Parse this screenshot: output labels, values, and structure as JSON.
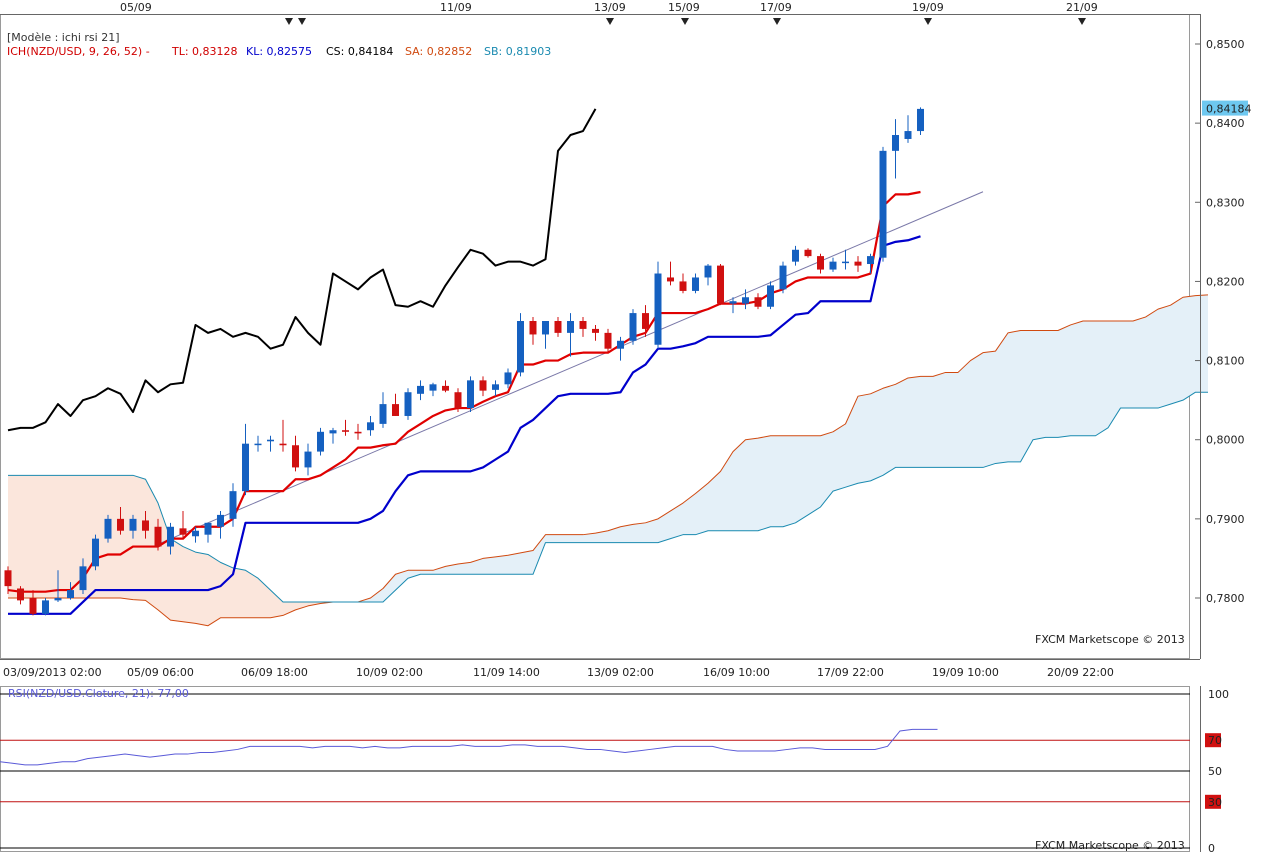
{
  "colors": {
    "tenkan": "#e00000",
    "kijun": "#0000cc",
    "chikou": "#000000",
    "senkou_a": "#d04a10",
    "senkou_b": "#1a8ab0",
    "cloud_bull": "#e4f0f8",
    "cloud_bear": "#fbe6dc",
    "up_candle": "#1560c0",
    "down_candle": "#d01010",
    "rsi": "#5a5ad8",
    "price_tag": "#6ec8f0"
  },
  "header": {
    "model": "[Modèle : ichi rsi 21]",
    "ich_name": "ICH(NZD/USD, 9, 26, 52) -",
    "tl": "TL: 0,83128",
    "kl": "KL: 0,82575",
    "cs": "CS: 0,84184",
    "sa": "SA: 0,82852",
    "sb": "SB: 0,81903"
  },
  "top_dates": [
    "05/09",
    "11/09",
    "13/09",
    "15/09",
    "17/09",
    "19/09",
    "21/09"
  ],
  "top_markers": [
    1
  ],
  "bottom_labels": [
    "03/09/2013 02:00",
    "05/09 06:00",
    "06/09 18:00",
    "10/09 02:00",
    "11/09 14:00",
    "13/09 02:00",
    "16/09 10:00",
    "17/09 22:00",
    "19/09 10:00",
    "20/09 22:00"
  ],
  "price_axis": [
    "0,8500",
    "0,8400",
    "0,8300",
    "0,8200",
    "0,8100",
    "0,8000",
    "0,7900",
    "0,7800"
  ],
  "last_price": "0,84184",
  "watermark": "FXCM Marketscope © 2013",
  "rsi": {
    "title": "RSI(NZD/USD.Cloture, 21): 77,00",
    "levels": [
      "100",
      "70",
      "50",
      "30",
      "0"
    ],
    "watermark": "FXCM Marketscope © 2013"
  },
  "chart_data": {
    "type": "candlestick",
    "pair": "NZD/USD",
    "ylim": [
      0.7745,
      0.8505
    ],
    "candles": [
      {
        "o": 0.7835,
        "h": 0.784,
        "l": 0.7805,
        "c": 0.7815
      },
      {
        "o": 0.7812,
        "h": 0.7815,
        "l": 0.7792,
        "c": 0.7797
      },
      {
        "o": 0.78,
        "h": 0.781,
        "l": 0.7778,
        "c": 0.778
      },
      {
        "o": 0.778,
        "h": 0.78,
        "l": 0.7778,
        "c": 0.7797
      },
      {
        "o": 0.7797,
        "h": 0.7835,
        "l": 0.7795,
        "c": 0.78
      },
      {
        "o": 0.78,
        "h": 0.782,
        "l": 0.7798,
        "c": 0.781
      },
      {
        "o": 0.781,
        "h": 0.785,
        "l": 0.7805,
        "c": 0.784
      },
      {
        "o": 0.784,
        "h": 0.788,
        "l": 0.7835,
        "c": 0.7875
      },
      {
        "o": 0.7875,
        "h": 0.7905,
        "l": 0.787,
        "c": 0.79
      },
      {
        "o": 0.79,
        "h": 0.7915,
        "l": 0.788,
        "c": 0.7885
      },
      {
        "o": 0.7885,
        "h": 0.7905,
        "l": 0.7875,
        "c": 0.79
      },
      {
        "o": 0.7898,
        "h": 0.791,
        "l": 0.7875,
        "c": 0.7885
      },
      {
        "o": 0.789,
        "h": 0.79,
        "l": 0.786,
        "c": 0.7865
      },
      {
        "o": 0.7865,
        "h": 0.7895,
        "l": 0.7855,
        "c": 0.789
      },
      {
        "o": 0.7888,
        "h": 0.791,
        "l": 0.7875,
        "c": 0.788
      },
      {
        "o": 0.7878,
        "h": 0.789,
        "l": 0.787,
        "c": 0.7885
      },
      {
        "o": 0.788,
        "h": 0.7895,
        "l": 0.787,
        "c": 0.7895
      },
      {
        "o": 0.789,
        "h": 0.791,
        "l": 0.7875,
        "c": 0.7905
      },
      {
        "o": 0.79,
        "h": 0.7945,
        "l": 0.789,
        "c": 0.7935
      },
      {
        "o": 0.7935,
        "h": 0.802,
        "l": 0.793,
        "c": 0.7995
      },
      {
        "o": 0.7995,
        "h": 0.8005,
        "l": 0.7985,
        "c": 0.7995
      },
      {
        "o": 0.7998,
        "h": 0.8005,
        "l": 0.7985,
        "c": 0.8
      },
      {
        "o": 0.7995,
        "h": 0.8025,
        "l": 0.7985,
        "c": 0.7993
      },
      {
        "o": 0.7993,
        "h": 0.8005,
        "l": 0.796,
        "c": 0.7965
      },
      {
        "o": 0.7965,
        "h": 0.7995,
        "l": 0.7955,
        "c": 0.7985
      },
      {
        "o": 0.7985,
        "h": 0.8015,
        "l": 0.798,
        "c": 0.801
      },
      {
        "o": 0.8008,
        "h": 0.8015,
        "l": 0.7995,
        "c": 0.8012
      },
      {
        "o": 0.8012,
        "h": 0.8025,
        "l": 0.8005,
        "c": 0.801
      },
      {
        "o": 0.801,
        "h": 0.802,
        "l": 0.8,
        "c": 0.8008
      },
      {
        "o": 0.8012,
        "h": 0.803,
        "l": 0.8005,
        "c": 0.8022
      },
      {
        "o": 0.802,
        "h": 0.806,
        "l": 0.8015,
        "c": 0.8045
      },
      {
        "o": 0.8045,
        "h": 0.8058,
        "l": 0.803,
        "c": 0.803
      },
      {
        "o": 0.803,
        "h": 0.8065,
        "l": 0.8025,
        "c": 0.806
      },
      {
        "o": 0.8058,
        "h": 0.8075,
        "l": 0.805,
        "c": 0.8068
      },
      {
        "o": 0.8062,
        "h": 0.8072,
        "l": 0.8055,
        "c": 0.807
      },
      {
        "o": 0.8068,
        "h": 0.8075,
        "l": 0.806,
        "c": 0.8062
      },
      {
        "o": 0.806,
        "h": 0.8065,
        "l": 0.8035,
        "c": 0.804
      },
      {
        "o": 0.804,
        "h": 0.808,
        "l": 0.8035,
        "c": 0.8075
      },
      {
        "o": 0.8075,
        "h": 0.808,
        "l": 0.8055,
        "c": 0.8062
      },
      {
        "o": 0.8063,
        "h": 0.8075,
        "l": 0.8055,
        "c": 0.807
      },
      {
        "o": 0.807,
        "h": 0.809,
        "l": 0.8065,
        "c": 0.8085
      },
      {
        "o": 0.8085,
        "h": 0.816,
        "l": 0.808,
        "c": 0.815
      },
      {
        "o": 0.815,
        "h": 0.8155,
        "l": 0.812,
        "c": 0.8133
      },
      {
        "o": 0.8133,
        "h": 0.815,
        "l": 0.8115,
        "c": 0.815
      },
      {
        "o": 0.815,
        "h": 0.8155,
        "l": 0.813,
        "c": 0.8135
      },
      {
        "o": 0.8135,
        "h": 0.816,
        "l": 0.8105,
        "c": 0.815
      },
      {
        "o": 0.815,
        "h": 0.8155,
        "l": 0.813,
        "c": 0.814
      },
      {
        "o": 0.814,
        "h": 0.8145,
        "l": 0.8125,
        "c": 0.8135
      },
      {
        "o": 0.8135,
        "h": 0.814,
        "l": 0.811,
        "c": 0.8115
      },
      {
        "o": 0.8115,
        "h": 0.813,
        "l": 0.81,
        "c": 0.8125
      },
      {
        "o": 0.8125,
        "h": 0.8165,
        "l": 0.812,
        "c": 0.816
      },
      {
        "o": 0.816,
        "h": 0.817,
        "l": 0.813,
        "c": 0.814
      },
      {
        "o": 0.812,
        "h": 0.8225,
        "l": 0.8115,
        "c": 0.821
      },
      {
        "o": 0.8205,
        "h": 0.8225,
        "l": 0.8195,
        "c": 0.82
      },
      {
        "o": 0.82,
        "h": 0.821,
        "l": 0.8185,
        "c": 0.8188
      },
      {
        "o": 0.8188,
        "h": 0.821,
        "l": 0.8185,
        "c": 0.8205
      },
      {
        "o": 0.8205,
        "h": 0.8222,
        "l": 0.8195,
        "c": 0.822
      },
      {
        "o": 0.822,
        "h": 0.8222,
        "l": 0.817,
        "c": 0.8172
      },
      {
        "o": 0.8172,
        "h": 0.818,
        "l": 0.816,
        "c": 0.8175
      },
      {
        "o": 0.8172,
        "h": 0.819,
        "l": 0.8165,
        "c": 0.818
      },
      {
        "o": 0.818,
        "h": 0.8185,
        "l": 0.8165,
        "c": 0.8168
      },
      {
        "o": 0.8168,
        "h": 0.82,
        "l": 0.8165,
        "c": 0.8195
      },
      {
        "o": 0.819,
        "h": 0.8225,
        "l": 0.8185,
        "c": 0.822
      },
      {
        "o": 0.8225,
        "h": 0.8245,
        "l": 0.822,
        "c": 0.824
      },
      {
        "o": 0.824,
        "h": 0.8242,
        "l": 0.823,
        "c": 0.8232
      },
      {
        "o": 0.8232,
        "h": 0.8235,
        "l": 0.821,
        "c": 0.8215
      },
      {
        "o": 0.8215,
        "h": 0.823,
        "l": 0.8212,
        "c": 0.8225
      },
      {
        "o": 0.8225,
        "h": 0.824,
        "l": 0.8215,
        "c": 0.8225
      },
      {
        "o": 0.8225,
        "h": 0.8232,
        "l": 0.8212,
        "c": 0.822
      },
      {
        "o": 0.8222,
        "h": 0.8235,
        "l": 0.821,
        "c": 0.8232
      },
      {
        "o": 0.823,
        "h": 0.837,
        "l": 0.8225,
        "c": 0.8365
      },
      {
        "o": 0.8365,
        "h": 0.8405,
        "l": 0.833,
        "c": 0.8385
      },
      {
        "o": 0.838,
        "h": 0.841,
        "l": 0.8375,
        "c": 0.839
      },
      {
        "o": 0.839,
        "h": 0.842,
        "l": 0.8385,
        "c": 0.8418
      }
    ],
    "tenkan": [
      0.781,
      0.7808,
      0.7808,
      0.7808,
      0.781,
      0.781,
      0.7825,
      0.785,
      0.7855,
      0.7855,
      0.7865,
      0.7865,
      0.7865,
      0.7875,
      0.7875,
      0.789,
      0.789,
      0.789,
      0.79,
      0.7935,
      0.7935,
      0.7935,
      0.7935,
      0.795,
      0.795,
      0.7955,
      0.7965,
      0.7975,
      0.799,
      0.799,
      0.7993,
      0.7995,
      0.801,
      0.802,
      0.803,
      0.8037,
      0.804,
      0.804,
      0.8048,
      0.8055,
      0.806,
      0.8095,
      0.8095,
      0.81,
      0.81,
      0.8108,
      0.811,
      0.811,
      0.811,
      0.812,
      0.813,
      0.8135,
      0.816,
      0.816,
      0.816,
      0.816,
      0.8165,
      0.8172,
      0.8172,
      0.8172,
      0.8175,
      0.8185,
      0.819,
      0.82,
      0.8205,
      0.8205,
      0.8205,
      0.8205,
      0.8205,
      0.821,
      0.8295,
      0.831,
      0.831,
      0.8313
    ],
    "kijun": [
      0.778,
      0.778,
      0.778,
      0.778,
      0.778,
      0.778,
      0.7795,
      0.781,
      0.781,
      0.781,
      0.781,
      0.781,
      0.781,
      0.781,
      0.781,
      0.781,
      0.781,
      0.7815,
      0.783,
      0.7895,
      0.7895,
      0.7895,
      0.7895,
      0.7895,
      0.7895,
      0.7895,
      0.7895,
      0.7895,
      0.7895,
      0.79,
      0.791,
      0.7935,
      0.7955,
      0.796,
      0.796,
      0.796,
      0.796,
      0.796,
      0.7965,
      0.7975,
      0.7985,
      0.8015,
      0.8025,
      0.804,
      0.8055,
      0.8058,
      0.8058,
      0.8058,
      0.8058,
      0.806,
      0.8085,
      0.8095,
      0.8115,
      0.8115,
      0.8118,
      0.8122,
      0.813,
      0.813,
      0.813,
      0.813,
      0.813,
      0.8132,
      0.8145,
      0.8158,
      0.816,
      0.8175,
      0.8175,
      0.8175,
      0.8175,
      0.8175,
      0.8245,
      0.825,
      0.8252,
      0.8257
    ],
    "chikou": [
      0.8012,
      0.8015,
      0.8015,
      0.8022,
      0.8045,
      0.803,
      0.805,
      0.8055,
      0.8065,
      0.8058,
      0.8035,
      0.8075,
      0.806,
      0.807,
      0.8072,
      0.8145,
      0.8135,
      0.814,
      0.813,
      0.8135,
      0.813,
      0.8115,
      0.812,
      0.8155,
      0.8135,
      0.812,
      0.821,
      0.82,
      0.819,
      0.8205,
      0.8215,
      0.817,
      0.8168,
      0.8175,
      0.8168,
      0.8195,
      0.8218,
      0.824,
      0.8235,
      0.822,
      0.8225,
      0.8225,
      0.822,
      0.8228,
      0.8365,
      0.8385,
      0.839,
      0.8418
    ],
    "senkou_a": [
      0.78,
      0.78,
      0.78,
      0.78,
      0.78,
      0.78,
      0.78,
      0.78,
      0.78,
      0.78,
      0.7798,
      0.7797,
      0.7785,
      0.7772,
      0.777,
      0.7768,
      0.7765,
      0.7775,
      0.7775,
      0.7775,
      0.7775,
      0.7775,
      0.7778,
      0.7785,
      0.779,
      0.7793,
      0.7795,
      0.7795,
      0.7795,
      0.78,
      0.7812,
      0.783,
      0.7835,
      0.7835,
      0.7835,
      0.784,
      0.7843,
      0.7845,
      0.785,
      0.7852,
      0.7854,
      0.7857,
      0.786,
      0.788,
      0.788,
      0.788,
      0.788,
      0.7882,
      0.7885,
      0.789,
      0.7893,
      0.7895,
      0.79,
      0.791,
      0.792,
      0.7932,
      0.7945,
      0.796,
      0.7985,
      0.8,
      0.8002,
      0.8005,
      0.8005,
      0.8005,
      0.8005,
      0.8005,
      0.801,
      0.802,
      0.8055,
      0.8058,
      0.8065,
      0.807,
      0.8078,
      0.808,
      0.808,
      0.8085,
      0.8085,
      0.81,
      0.811,
      0.8112,
      0.8135,
      0.8138,
      0.8138,
      0.8138,
      0.8138,
      0.8145,
      0.815,
      0.815,
      0.815,
      0.815,
      0.815,
      0.8155,
      0.8165,
      0.817,
      0.818,
      0.8182,
      0.8183
    ],
    "senkou_b": [
      0.7955,
      0.7955,
      0.7955,
      0.7955,
      0.7955,
      0.7955,
      0.7955,
      0.7955,
      0.7955,
      0.7955,
      0.7955,
      0.795,
      0.792,
      0.7875,
      0.7865,
      0.7858,
      0.7855,
      0.7845,
      0.7838,
      0.7835,
      0.7825,
      0.781,
      0.7795,
      0.7795,
      0.7795,
      0.7795,
      0.7795,
      0.7795,
      0.7795,
      0.7795,
      0.7795,
      0.781,
      0.7825,
      0.783,
      0.783,
      0.783,
      0.783,
      0.783,
      0.783,
      0.783,
      0.783,
      0.783,
      0.783,
      0.787,
      0.787,
      0.787,
      0.787,
      0.787,
      0.787,
      0.787,
      0.787,
      0.787,
      0.787,
      0.7875,
      0.788,
      0.788,
      0.7885,
      0.7885,
      0.7885,
      0.7885,
      0.7885,
      0.789,
      0.789,
      0.7895,
      0.7905,
      0.7915,
      0.7935,
      0.794,
      0.7945,
      0.7948,
      0.7955,
      0.7965,
      0.7965,
      0.7965,
      0.7965,
      0.7965,
      0.7965,
      0.7965,
      0.7965,
      0.797,
      0.7972,
      0.7972,
      0.8,
      0.8003,
      0.8003,
      0.8005,
      0.8005,
      0.8005,
      0.8015,
      0.804,
      0.804,
      0.804,
      0.804,
      0.8045,
      0.805,
      0.806,
      0.806
    ],
    "trendline": [
      [
        12,
        0.7868
      ],
      [
        74,
        0.824
      ]
    ],
    "rsi_values": [
      56,
      55,
      54,
      54,
      55,
      56,
      56,
      58,
      59,
      60,
      61,
      60,
      59,
      60,
      61,
      61,
      62,
      62,
      63,
      64,
      66,
      66,
      66,
      66,
      66,
      65,
      66,
      66,
      66,
      65,
      66,
      65,
      65,
      66,
      66,
      66,
      66,
      67,
      66,
      66,
      66,
      67,
      67,
      66,
      66,
      66,
      65,
      64,
      64,
      63,
      62,
      63,
      64,
      65,
      66,
      66,
      66,
      66,
      64,
      63,
      63,
      63,
      63,
      64,
      65,
      65,
      64,
      64,
      64,
      64,
      64,
      66,
      76,
      77,
      77,
      77
    ],
    "rsi_levels": [
      100,
      70,
      50,
      30,
      0
    ]
  }
}
